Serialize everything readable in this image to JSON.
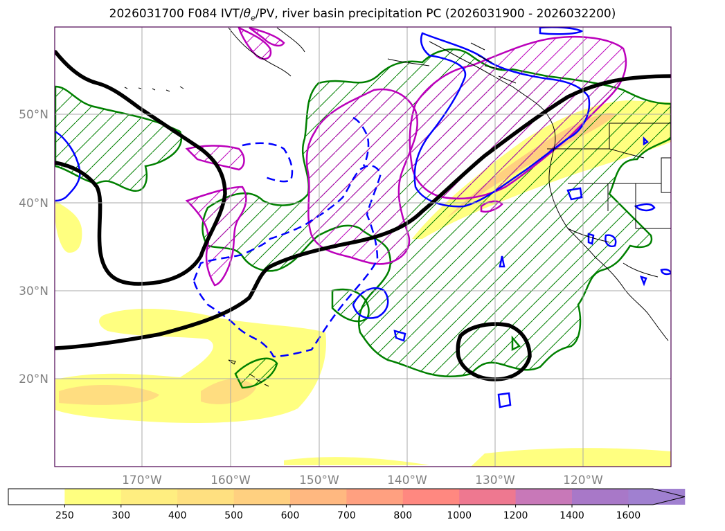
{
  "title": {
    "run": "2026031700",
    "forecast": "F084",
    "fields_prefix": "IVT/",
    "theta": "θ",
    "theta_sub": "e",
    "fields_suffix": "/PV, river basin precipitation PC",
    "period": "(2026031900 - 2026032200)"
  },
  "map": {
    "lat_ticks": [
      {
        "value": 50,
        "label": "50°N"
      },
      {
        "value": 40,
        "label": "40°N"
      },
      {
        "value": 30,
        "label": "30°N"
      },
      {
        "value": 20,
        "label": "20°N"
      }
    ],
    "lon_ticks": [
      {
        "value": -170,
        "label": "170°W"
      },
      {
        "value": -160,
        "label": "160°W"
      },
      {
        "value": -150,
        "label": "150°W"
      },
      {
        "value": -140,
        "label": "140°W"
      },
      {
        "value": -130,
        "label": "130°W"
      },
      {
        "value": -120,
        "label": "120°W"
      }
    ],
    "extent": {
      "lon": [
        -180,
        -110
      ],
      "lat": [
        10,
        60
      ]
    },
    "colors": {
      "pv_contour": "#000000",
      "theta_e_contour": "#0000ff",
      "pc_green": "#008000",
      "pc_magenta": "#bb00bb",
      "grid": "#aaaaaa"
    }
  },
  "colorbar": {
    "levels": [
      "250",
      "300",
      "400",
      "500",
      "600",
      "700",
      "800",
      "1000",
      "1200",
      "1400",
      "1600"
    ],
    "colors": [
      "#ffffff",
      "#ffff80",
      "#ffee80",
      "#ffe080",
      "#ffd080",
      "#ffb880",
      "#ffa080",
      "#ff8880",
      "#ee7890",
      "#c878b8",
      "#a878c8",
      "#a080d0"
    ]
  }
}
